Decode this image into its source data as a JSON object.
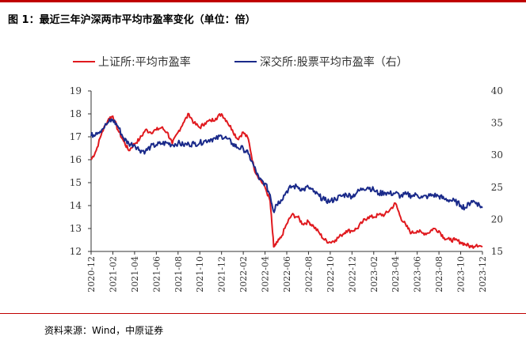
{
  "figure": {
    "title": "图 1：最近三年沪深两市平均市盈率变化（单位：倍）",
    "source": "资料来源：Wind，中原证券"
  },
  "chart_data": {
    "type": "line",
    "title": "",
    "xlabel": "",
    "ylabel": "",
    "y_left": {
      "min": 12,
      "max": 19,
      "ticks": [
        12,
        13,
        14,
        15,
        16,
        17,
        18,
        19
      ]
    },
    "y_right": {
      "min": 15,
      "max": 40,
      "ticks": [
        15,
        20,
        25,
        30,
        35,
        40
      ]
    },
    "x_ticks": [
      "2020-12",
      "2021-02",
      "2021-04",
      "2021-06",
      "2021-08",
      "2021-10",
      "2021-12",
      "2022-02",
      "2022-04",
      "2022-06",
      "2022-08",
      "2022-10",
      "2022-12",
      "2023-02",
      "2023-04",
      "2023-06",
      "2023-08",
      "2023-10",
      "2023-12"
    ],
    "legend_position": "top",
    "grid": false,
    "series": [
      {
        "name": "上证所:平均市盈率",
        "axis": "left",
        "color": "#e0191e",
        "points": [
          [
            "2020-12",
            16.0
          ],
          [
            "2020-12-15",
            16.4
          ],
          [
            "2021-01",
            17.2
          ],
          [
            "2021-01-20",
            17.8
          ],
          [
            "2021-02",
            17.9
          ],
          [
            "2021-02-15",
            17.3
          ],
          [
            "2021-03",
            16.8
          ],
          [
            "2021-03-15",
            16.4
          ],
          [
            "2021-04",
            16.7
          ],
          [
            "2021-04-15",
            16.9
          ],
          [
            "2021-05",
            17.3
          ],
          [
            "2021-05-15",
            17.2
          ],
          [
            "2021-06",
            17.3
          ],
          [
            "2021-06-15",
            17.4
          ],
          [
            "2021-07",
            17.2
          ],
          [
            "2021-07-15",
            16.7
          ],
          [
            "2021-08",
            17.2
          ],
          [
            "2021-08-15",
            17.6
          ],
          [
            "2021-09",
            18.0
          ],
          [
            "2021-09-15",
            17.6
          ],
          [
            "2021-10",
            17.4
          ],
          [
            "2021-10-15",
            17.6
          ],
          [
            "2021-11",
            17.7
          ],
          [
            "2021-11-15",
            17.8
          ],
          [
            "2021-12",
            18.0
          ],
          [
            "2021-12-15",
            17.7
          ],
          [
            "2022-01",
            17.3
          ],
          [
            "2022-01-15",
            16.9
          ],
          [
            "2022-02",
            17.2
          ],
          [
            "2022-02-15",
            16.9
          ],
          [
            "2022-03",
            15.6
          ],
          [
            "2022-03-15",
            15.2
          ],
          [
            "2022-04",
            14.8
          ],
          [
            "2022-04-15",
            14.2
          ],
          [
            "2022-04-25",
            12.2
          ],
          [
            "2022-05",
            12.3
          ],
          [
            "2022-05-15",
            12.6
          ],
          [
            "2022-06",
            13.2
          ],
          [
            "2022-06-15",
            13.6
          ],
          [
            "2022-07",
            13.5
          ],
          [
            "2022-07-15",
            13.2
          ],
          [
            "2022-08",
            13.3
          ],
          [
            "2022-08-15",
            13.1
          ],
          [
            "2022-09",
            12.8
          ],
          [
            "2022-09-15",
            12.5
          ],
          [
            "2022-10",
            12.4
          ],
          [
            "2022-10-15",
            12.5
          ],
          [
            "2022-11",
            12.7
          ],
          [
            "2022-11-15",
            12.9
          ],
          [
            "2022-12",
            12.9
          ],
          [
            "2022-12-15",
            13.0
          ],
          [
            "2023-01",
            13.3
          ],
          [
            "2023-01-15",
            13.5
          ],
          [
            "2023-02",
            13.5
          ],
          [
            "2023-02-15",
            13.6
          ],
          [
            "2023-03",
            13.6
          ],
          [
            "2023-03-15",
            13.8
          ],
          [
            "2023-04",
            14.1
          ],
          [
            "2023-04-15",
            13.5
          ],
          [
            "2023-05",
            13.1
          ],
          [
            "2023-05-15",
            12.8
          ],
          [
            "2023-06",
            12.9
          ],
          [
            "2023-06-15",
            12.8
          ],
          [
            "2023-07",
            12.8
          ],
          [
            "2023-07-15",
            13.0
          ],
          [
            "2023-08",
            12.9
          ],
          [
            "2023-08-15",
            12.6
          ],
          [
            "2023-09",
            12.5
          ],
          [
            "2023-09-15",
            12.5
          ],
          [
            "2023-10",
            12.4
          ],
          [
            "2023-10-15",
            12.3
          ],
          [
            "2023-11",
            12.2
          ],
          [
            "2023-11-15",
            12.3
          ],
          [
            "2023-12",
            12.2
          ]
        ]
      },
      {
        "name": "深交所:股票平均市盈率（右）",
        "axis": "right",
        "color": "#1a2a8a",
        "points": [
          [
            "2020-12",
            33.0
          ],
          [
            "2020-12-15",
            33.5
          ],
          [
            "2021-01",
            34.0
          ],
          [
            "2021-01-20",
            35.2
          ],
          [
            "2021-02",
            35.5
          ],
          [
            "2021-02-15",
            34.5
          ],
          [
            "2021-03",
            32.6
          ],
          [
            "2021-03-15",
            31.8
          ],
          [
            "2021-04",
            31.6
          ],
          [
            "2021-04-15",
            30.8
          ],
          [
            "2021-05",
            30.6
          ],
          [
            "2021-05-15",
            31.3
          ],
          [
            "2021-06",
            31.6
          ],
          [
            "2021-06-15",
            31.8
          ],
          [
            "2021-07",
            31.9
          ],
          [
            "2021-07-15",
            31.6
          ],
          [
            "2021-08",
            31.9
          ],
          [
            "2021-08-15",
            31.6
          ],
          [
            "2021-09",
            31.7
          ],
          [
            "2021-09-15",
            31.8
          ],
          [
            "2021-10",
            31.9
          ],
          [
            "2021-10-15",
            32.2
          ],
          [
            "2021-11",
            32.5
          ],
          [
            "2021-11-15",
            32.5
          ],
          [
            "2021-12",
            33.0
          ],
          [
            "2021-12-15",
            32.6
          ],
          [
            "2022-01",
            31.8
          ],
          [
            "2022-01-15",
            31.2
          ],
          [
            "2022-02",
            31.0
          ],
          [
            "2022-02-15",
            30.2
          ],
          [
            "2022-03",
            28.2
          ],
          [
            "2022-03-15",
            26.2
          ],
          [
            "2022-04",
            25.6
          ],
          [
            "2022-04-15",
            23.8
          ],
          [
            "2022-04-25",
            21.2
          ],
          [
            "2022-05",
            22.3
          ],
          [
            "2022-05-15",
            23.0
          ],
          [
            "2022-06",
            24.4
          ],
          [
            "2022-06-15",
            25.1
          ],
          [
            "2022-07",
            25.1
          ],
          [
            "2022-07-15",
            24.6
          ],
          [
            "2022-08",
            25.0
          ],
          [
            "2022-08-15",
            24.3
          ],
          [
            "2022-09",
            23.6
          ],
          [
            "2022-09-15",
            23.0
          ],
          [
            "2022-10",
            22.8
          ],
          [
            "2022-10-15",
            23.2
          ],
          [
            "2022-11",
            23.6
          ],
          [
            "2022-11-15",
            23.9
          ],
          [
            "2022-12",
            23.6
          ],
          [
            "2022-12-15",
            24.2
          ],
          [
            "2023-01",
            24.8
          ],
          [
            "2023-01-15",
            25.0
          ],
          [
            "2023-02",
            24.6
          ],
          [
            "2023-02-15",
            24.0
          ],
          [
            "2023-03",
            24.2
          ],
          [
            "2023-03-15",
            24.0
          ],
          [
            "2023-04",
            24.1
          ],
          [
            "2023-04-15",
            23.6
          ],
          [
            "2023-05",
            23.9
          ],
          [
            "2023-05-15",
            23.7
          ],
          [
            "2023-06",
            23.8
          ],
          [
            "2023-06-15",
            23.4
          ],
          [
            "2023-07",
            23.6
          ],
          [
            "2023-07-15",
            23.8
          ],
          [
            "2023-08",
            23.6
          ],
          [
            "2023-08-15",
            23.2
          ],
          [
            "2023-09",
            23.0
          ],
          [
            "2023-09-15",
            22.8
          ],
          [
            "2023-10",
            22.2
          ],
          [
            "2023-10-15",
            21.8
          ],
          [
            "2023-11",
            22.9
          ],
          [
            "2023-11-15",
            22.6
          ],
          [
            "2023-12",
            21.8
          ]
        ]
      }
    ]
  }
}
